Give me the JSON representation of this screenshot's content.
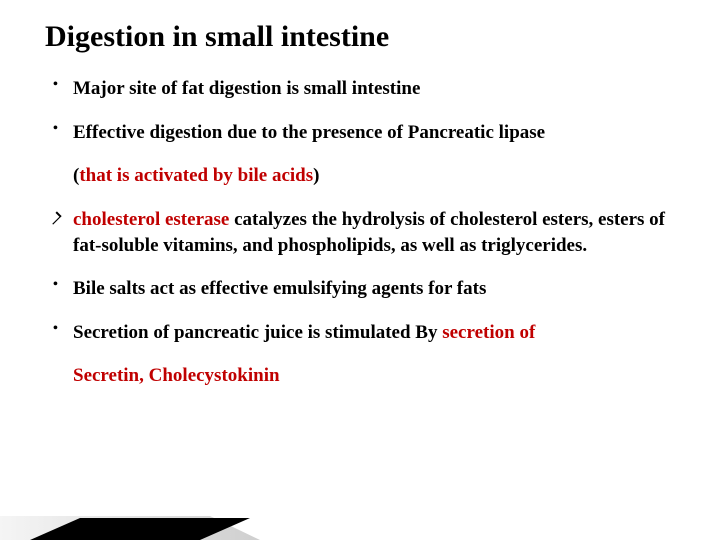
{
  "title": "Digestion in small intestine",
  "items": [
    {
      "marker": "dot",
      "segments": [
        {
          "text": "Major site of fat digestion is small intestine",
          "color": "#000000"
        }
      ]
    },
    {
      "marker": "dot",
      "segments": [
        {
          "text": " Effective digestion due to the presence of Pancreatic lipase",
          "color": "#000000"
        }
      ]
    },
    {
      "marker": "none",
      "segments": [
        {
          "text": "(",
          "color": "#000000"
        },
        {
          "text": "that is activated by bile acids",
          "color": "#c00000"
        },
        {
          "text": ")",
          "color": "#000000"
        }
      ]
    },
    {
      "marker": "arrow",
      "segments": [
        {
          "text": "cholesterol esterase",
          "color": "#c00000"
        },
        {
          "text": " catalyzes the hydrolysis of cholesterol esters, esters of fat-soluble vitamins, and phospholipids, as well as triglycerides.",
          "color": "#000000"
        }
      ]
    },
    {
      "marker": "dot",
      "segments": [
        {
          "text": " Bile salts act as effective emulsifying agents for fats",
          "color": "#000000"
        }
      ]
    },
    {
      "marker": "dot",
      "segments": [
        {
          "text": " Secretion of pancreatic juice is stimulated  By ",
          "color": "#000000"
        },
        {
          "text": "secretion of",
          "color": "#c00000"
        }
      ]
    },
    {
      "marker": "none",
      "segments": [
        {
          "text": "Secretin, Cholecystokinin",
          "color": "#c00000"
        }
      ]
    }
  ],
  "decor": {
    "grad_start": "#f5f5f5",
    "grad_end": "#cfcfcf",
    "line_color": "#000000"
  }
}
